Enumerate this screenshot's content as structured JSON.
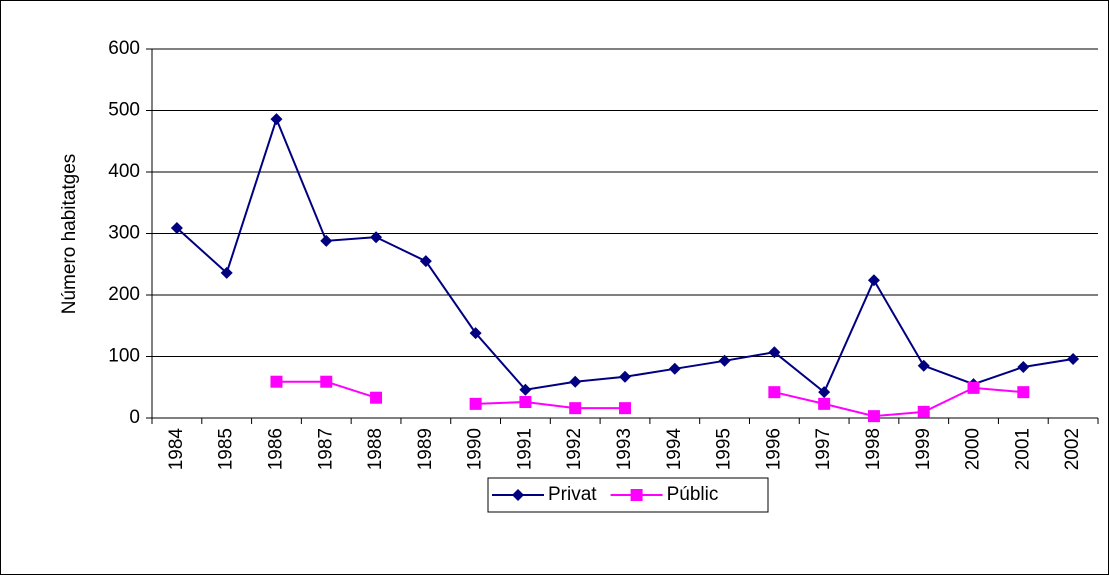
{
  "chart_data": {
    "type": "line",
    "y_label": "Número habitatges",
    "categories": [
      "1984",
      "1985",
      "1986",
      "1987",
      "1988",
      "1989",
      "1990",
      "1991",
      "1992",
      "1993",
      "1994",
      "1995",
      "1996",
      "1997",
      "1998",
      "1999",
      "2000",
      "2001",
      "2002"
    ],
    "series": [
      {
        "name": "Privat",
        "color": "#000080",
        "marker": "diamond",
        "values": [
          309,
          236,
          486,
          288,
          294,
          255,
          138,
          46,
          59,
          67,
          80,
          93,
          107,
          42,
          224,
          85,
          55,
          83,
          96
        ]
      },
      {
        "name": "Públic",
        "color": "#ff00ff",
        "marker": "square",
        "values": [
          null,
          null,
          59,
          59,
          33,
          null,
          23,
          26,
          16,
          16,
          null,
          null,
          42,
          23,
          3,
          10,
          49,
          42,
          null
        ]
      }
    ],
    "ylim": [
      0,
      600
    ],
    "yticks": [
      0,
      100,
      200,
      300,
      400,
      500,
      600
    ],
    "grid": true,
    "legend": "bottom"
  }
}
